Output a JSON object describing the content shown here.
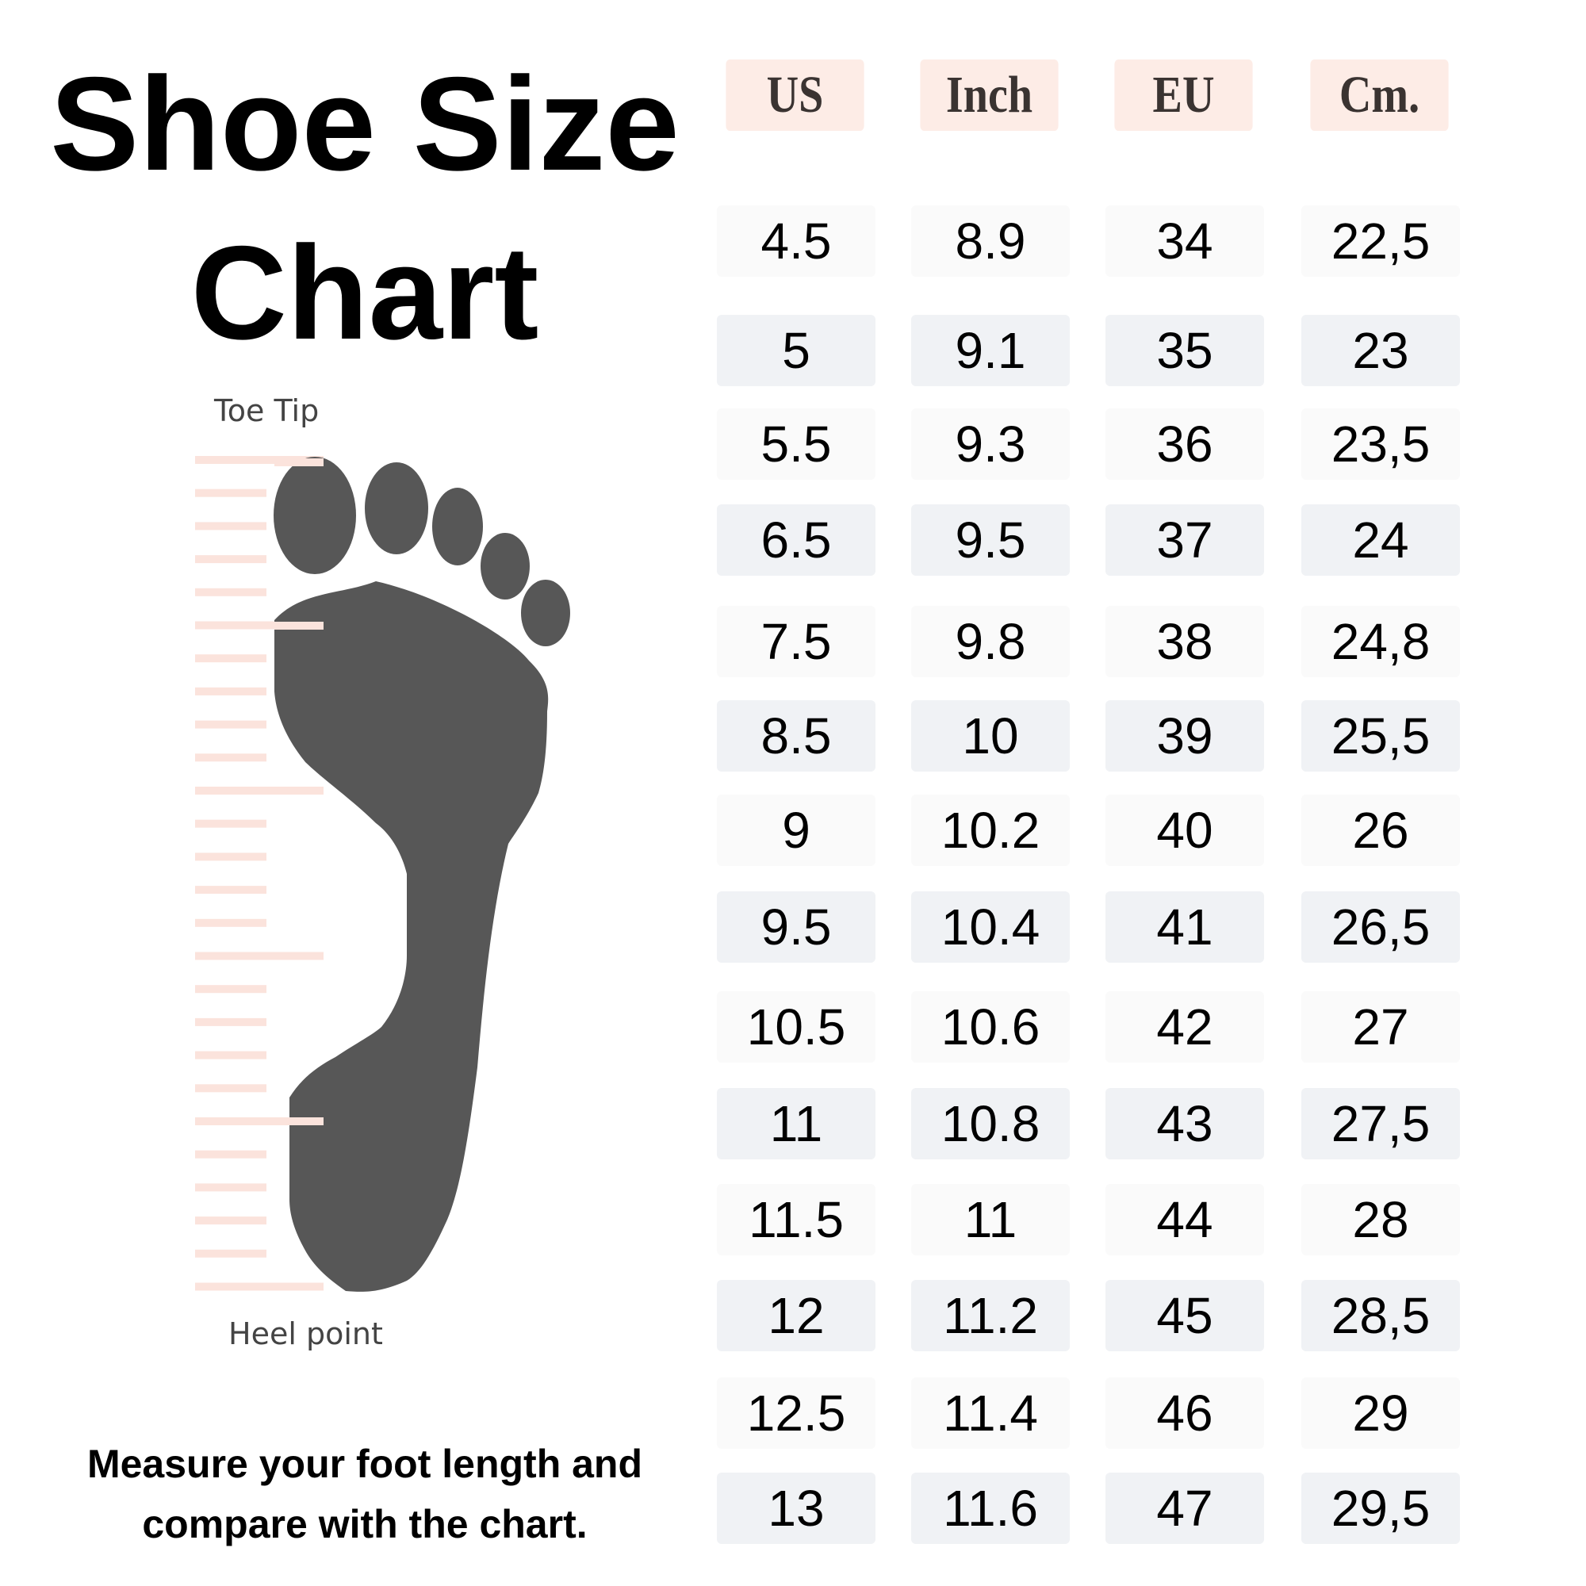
{
  "title_line1": "Shoe Size",
  "title_line2": "Chart",
  "diagram": {
    "toe_label": "Toe Tip",
    "heel_label": "Heel point",
    "foot_color": "#575757",
    "ruler_color": "#fbe3dc"
  },
  "instruction_line1": "Measure your foot length and",
  "instruction_line2": "compare with the chart.",
  "table": {
    "headers": [
      "US",
      "Inch",
      "EU",
      "Cm."
    ],
    "header_bg": "#fdece6",
    "rows": [
      [
        "4.5",
        "8.9",
        "34",
        "22,5"
      ],
      [
        "5",
        "9.1",
        "35",
        "23"
      ],
      [
        "5.5",
        "9.3",
        "36",
        "23,5"
      ],
      [
        "6.5",
        "9.5",
        "37",
        "24"
      ],
      [
        "7.5",
        "9.8",
        "38",
        "24,8"
      ],
      [
        "8.5",
        "10",
        "39",
        "25,5"
      ],
      [
        "9",
        "10.2",
        "40",
        "26"
      ],
      [
        "9.5",
        "10.4",
        "41",
        "26,5"
      ],
      [
        "10.5",
        "10.6",
        "42",
        "27"
      ],
      [
        "11",
        "10.8",
        "43",
        "27,5"
      ],
      [
        "11.5",
        "11",
        "44",
        "28"
      ],
      [
        "12",
        "11.2",
        "45",
        "28,5"
      ],
      [
        "12.5",
        "11.4",
        "46",
        "29"
      ],
      [
        "13",
        "11.6",
        "47",
        "29,5"
      ]
    ]
  }
}
